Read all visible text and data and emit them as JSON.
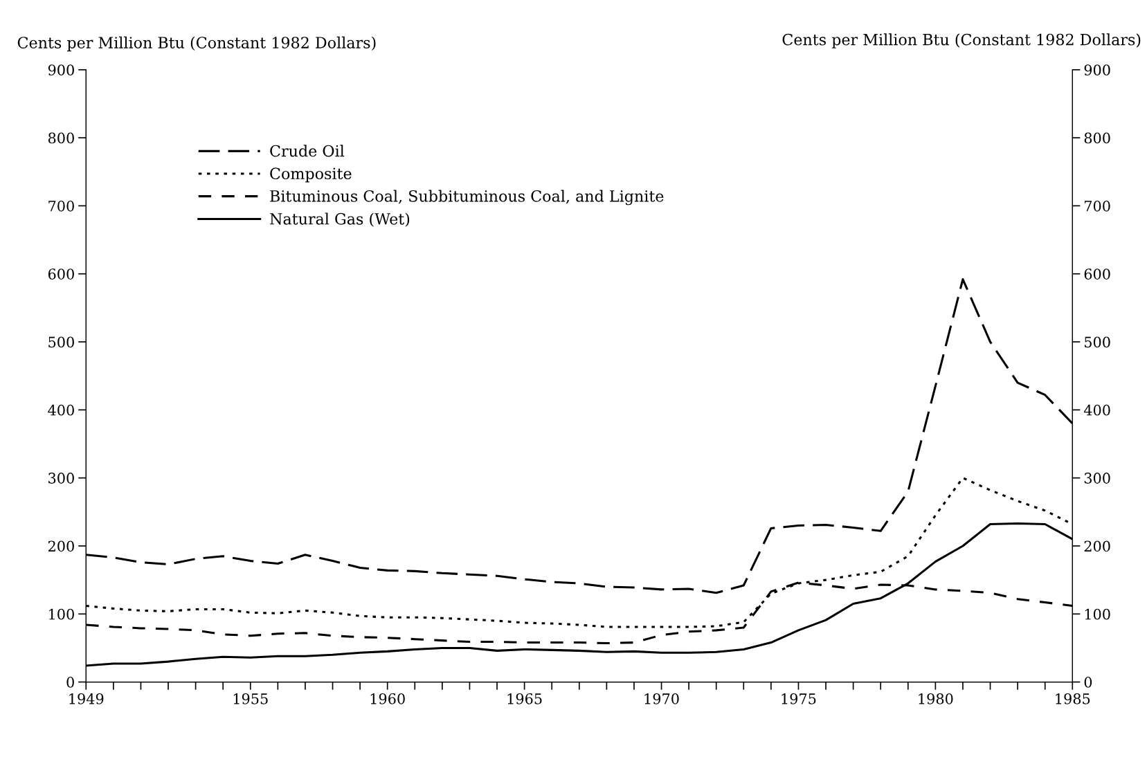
{
  "chart_data": {
    "type": "line",
    "ylabel": "Cents per Million Btu (Constant 1982 Dollars)",
    "y2label": "Cents per Million Btu (Constant 1982 Dollars)",
    "x": [
      1949,
      1950,
      1951,
      1952,
      1953,
      1954,
      1955,
      1956,
      1957,
      1958,
      1959,
      1960,
      1961,
      1962,
      1963,
      1964,
      1965,
      1966,
      1967,
      1968,
      1969,
      1970,
      1971,
      1972,
      1973,
      1974,
      1975,
      1976,
      1977,
      1978,
      1979,
      1980,
      1981,
      1982,
      1983,
      1984,
      1985
    ],
    "series": [
      {
        "name": "Crude Oil",
        "color": "#000000",
        "line_style": "longdash",
        "values": [
          187,
          183,
          176,
          173,
          181,
          185,
          178,
          174,
          187,
          178,
          168,
          164,
          163,
          160,
          158,
          156,
          151,
          147,
          145,
          140,
          139,
          136,
          137,
          131,
          142,
          226,
          230,
          231,
          227,
          222,
          280,
          435,
          592,
          500,
          440,
          422,
          380
        ]
      },
      {
        "name": "Composite",
        "color": "#000000",
        "line_style": "dotted",
        "values": [
          112,
          108,
          105,
          104,
          107,
          107,
          102,
          101,
          105,
          102,
          97,
          95,
          95,
          94,
          92,
          90,
          87,
          86,
          84,
          81,
          81,
          81,
          81,
          82,
          88,
          130,
          145,
          150,
          157,
          162,
          185,
          245,
          300,
          282,
          266,
          252,
          232
        ]
      },
      {
        "name": "Bituminous Coal, Subbituminous Coal, and Lignite",
        "color": "#000000",
        "line_style": "dashed",
        "values": [
          84,
          81,
          79,
          78,
          76,
          70,
          68,
          71,
          72,
          68,
          66,
          65,
          63,
          61,
          59,
          59,
          58,
          58,
          58,
          57,
          58,
          69,
          74,
          76,
          80,
          133,
          146,
          142,
          137,
          143,
          142,
          136,
          134,
          131,
          122,
          117,
          112
        ]
      },
      {
        "name": "Natural Gas (Wet)",
        "color": "#000000",
        "line_style": "solid",
        "values": [
          24,
          27,
          27,
          30,
          34,
          37,
          36,
          38,
          38,
          40,
          43,
          45,
          48,
          50,
          50,
          46,
          48,
          47,
          46,
          44,
          45,
          43,
          43,
          44,
          48,
          58,
          76,
          91,
          115,
          123,
          145,
          177,
          200,
          232,
          233,
          232,
          210
        ]
      }
    ],
    "xlim": [
      1949,
      1985
    ],
    "xticks": [
      1949,
      {
        "value": 1950,
        "label": null
      },
      {
        "value": 1951,
        "label": null
      },
      {
        "value": 1952,
        "label": null
      },
      {
        "value": 1953,
        "label": null
      },
      {
        "value": 1954,
        "label": null
      },
      1955,
      {
        "value": 1956,
        "label": null
      },
      {
        "value": 1957,
        "label": null
      },
      {
        "value": 1958,
        "label": null
      },
      {
        "value": 1959,
        "label": null
      },
      1960,
      {
        "value": 1961,
        "label": null
      },
      {
        "value": 1962,
        "label": null
      },
      {
        "value": 1963,
        "label": null
      },
      {
        "value": 1964,
        "label": null
      },
      1965,
      {
        "value": 1966,
        "label": null
      },
      {
        "value": 1967,
        "label": null
      },
      {
        "value": 1968,
        "label": null
      },
      {
        "value": 1969,
        "label": null
      },
      1970,
      {
        "value": 1971,
        "label": null
      },
      {
        "value": 1972,
        "label": null
      },
      {
        "value": 1973,
        "label": null
      },
      {
        "value": 1974,
        "label": null
      },
      1975,
      {
        "value": 1976,
        "label": null
      },
      {
        "value": 1977,
        "label": null
      },
      {
        "value": 1978,
        "label": null
      },
      {
        "value": 1979,
        "label": null
      },
      1980,
      {
        "value": 1981,
        "label": null
      },
      {
        "value": 1982,
        "label": null
      },
      {
        "value": 1983,
        "label": null
      },
      {
        "value": 1984,
        "label": null
      },
      1985
    ],
    "ylim": [
      0,
      900
    ],
    "yticks": [
      0,
      100,
      200,
      300,
      400,
      500,
      600,
      700,
      800,
      900
    ],
    "y2lim": [
      0,
      900
    ],
    "y2ticks": [
      0,
      100,
      200,
      300,
      400,
      500,
      600,
      700,
      800,
      900
    ],
    "grid": false,
    "legend": "top left",
    "marker": "none"
  }
}
